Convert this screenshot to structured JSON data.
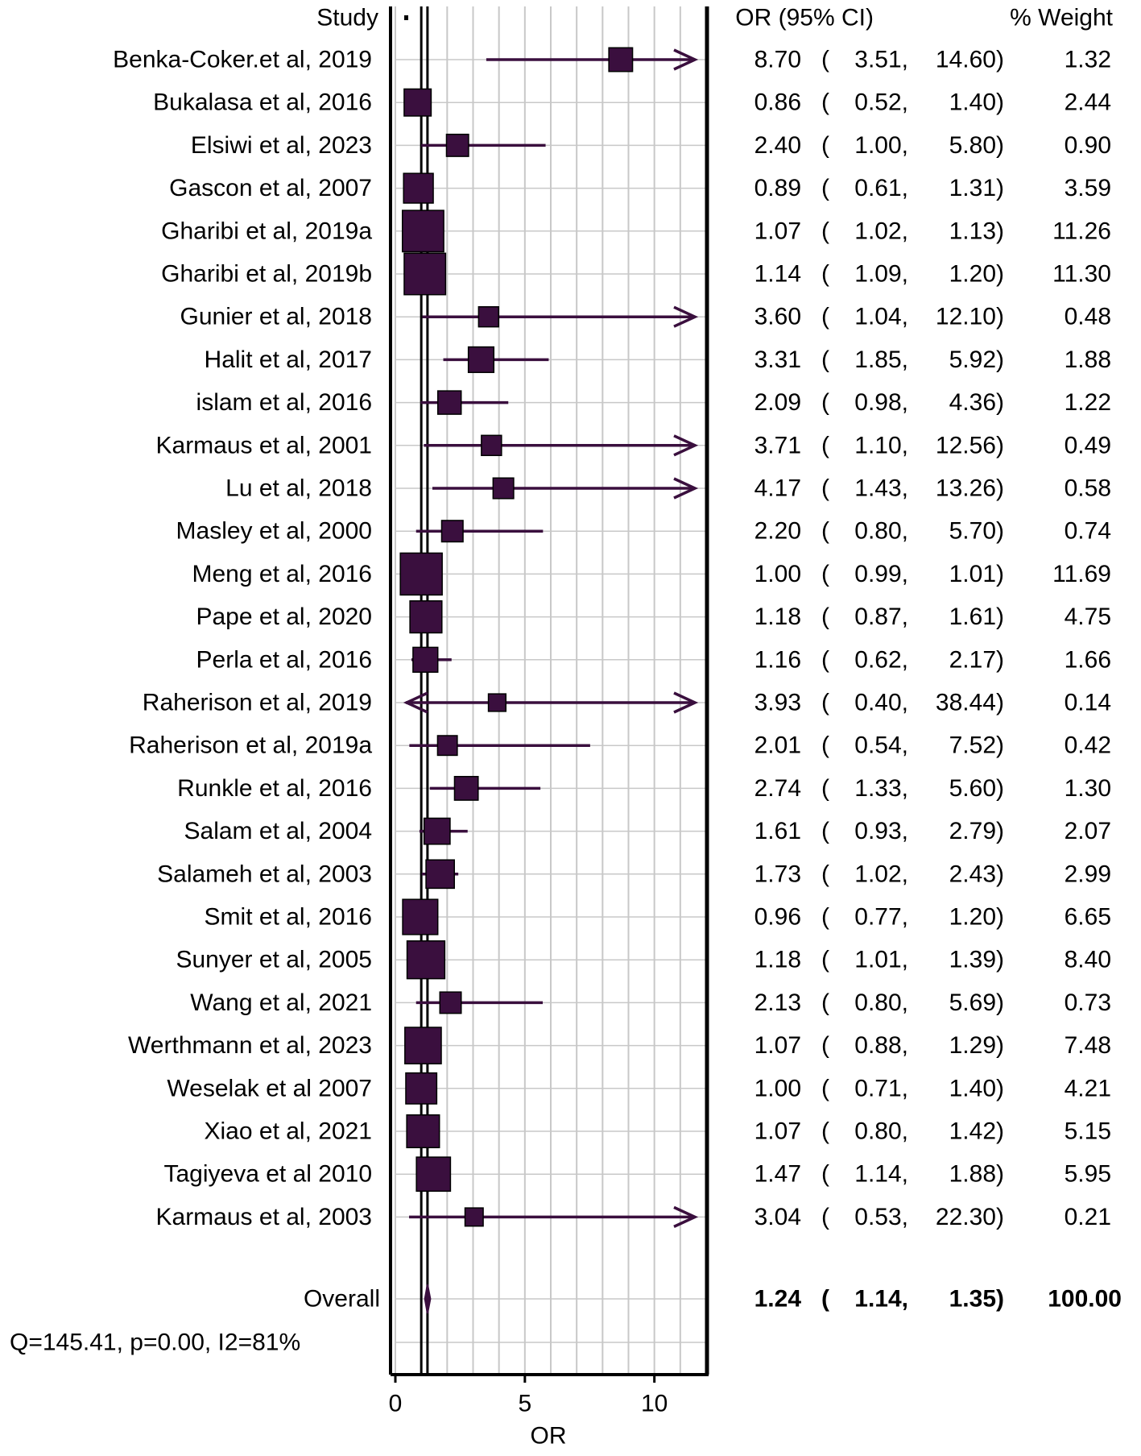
{
  "chart_data": {
    "type": "forest",
    "title": "",
    "xlabel": "OR",
    "xlim": [
      0,
      12
    ],
    "xticks": [
      0,
      5,
      10
    ],
    "gridlines": [
      0,
      1,
      2,
      3,
      4,
      5,
      6,
      7,
      8,
      9,
      10,
      11,
      12
    ],
    "grid": true,
    "null_line": 1,
    "pooled_estimate": 1.24,
    "headers": {
      "study": "Study",
      "ci": "OR (95% CI)",
      "weight": "% Weight"
    },
    "studies": [
      {
        "label": "Benka-Coker.et al, 2019",
        "or": 8.7,
        "lower": 3.51,
        "upper": 14.6,
        "or_text": "8.70",
        "lower_text": "3.51,",
        "upper_text": "14.60)",
        "weight": 1.32,
        "weight_text": "1.32"
      },
      {
        "label": "Bukalasa et al, 2016",
        "or": 0.86,
        "lower": 0.52,
        "upper": 1.4,
        "or_text": "0.86",
        "lower_text": "0.52,",
        "upper_text": "1.40)",
        "weight": 2.44,
        "weight_text": "2.44"
      },
      {
        "label": "Elsiwi et al, 2023",
        "or": 2.4,
        "lower": 1.0,
        "upper": 5.8,
        "or_text": "2.40",
        "lower_text": "1.00,",
        "upper_text": "5.80)",
        "weight": 0.9,
        "weight_text": "0.90"
      },
      {
        "label": "Gascon et al, 2007",
        "or": 0.89,
        "lower": 0.61,
        "upper": 1.31,
        "or_text": "0.89",
        "lower_text": "0.61,",
        "upper_text": "1.31)",
        "weight": 3.59,
        "weight_text": "3.59"
      },
      {
        "label": "Gharibi et al, 2019a",
        "or": 1.07,
        "lower": 1.02,
        "upper": 1.13,
        "or_text": "1.07",
        "lower_text": "1.02,",
        "upper_text": "1.13)",
        "weight": 11.26,
        "weight_text": "11.26"
      },
      {
        "label": "Gharibi et al, 2019b",
        "or": 1.14,
        "lower": 1.09,
        "upper": 1.2,
        "or_text": "1.14",
        "lower_text": "1.09,",
        "upper_text": "1.20)",
        "weight": 11.3,
        "weight_text": "11.30"
      },
      {
        "label": "Gunier et al, 2018",
        "or": 3.6,
        "lower": 1.04,
        "upper": 12.1,
        "or_text": "3.60",
        "lower_text": "1.04,",
        "upper_text": "12.10)",
        "weight": 0.48,
        "weight_text": "0.48"
      },
      {
        "label": "Halit et al, 2017",
        "or": 3.31,
        "lower": 1.85,
        "upper": 5.92,
        "or_text": "3.31",
        "lower_text": "1.85,",
        "upper_text": "5.92)",
        "weight": 1.88,
        "weight_text": "1.88"
      },
      {
        "label": "islam et al, 2016",
        "or": 2.09,
        "lower": 0.98,
        "upper": 4.36,
        "or_text": "2.09",
        "lower_text": "0.98,",
        "upper_text": "4.36)",
        "weight": 1.22,
        "weight_text": "1.22"
      },
      {
        "label": "Karmaus et al, 2001",
        "or": 3.71,
        "lower": 1.1,
        "upper": 12.56,
        "or_text": "3.71",
        "lower_text": "1.10,",
        "upper_text": "12.56)",
        "weight": 0.49,
        "weight_text": "0.49"
      },
      {
        "label": "Lu et al, 2018",
        "or": 4.17,
        "lower": 1.43,
        "upper": 13.26,
        "or_text": "4.17",
        "lower_text": "1.43,",
        "upper_text": "13.26)",
        "weight": 0.58,
        "weight_text": "0.58"
      },
      {
        "label": "Masley et al, 2000",
        "or": 2.2,
        "lower": 0.8,
        "upper": 5.7,
        "or_text": "2.20",
        "lower_text": "0.80,",
        "upper_text": "5.70)",
        "weight": 0.74,
        "weight_text": "0.74"
      },
      {
        "label": "Meng et al, 2016",
        "or": 1.0,
        "lower": 0.99,
        "upper": 1.01,
        "or_text": "1.00",
        "lower_text": "0.99,",
        "upper_text": "1.01)",
        "weight": 11.69,
        "weight_text": "11.69"
      },
      {
        "label": "Pape et al, 2020",
        "or": 1.18,
        "lower": 0.87,
        "upper": 1.61,
        "or_text": "1.18",
        "lower_text": "0.87,",
        "upper_text": "1.61)",
        "weight": 4.75,
        "weight_text": "4.75"
      },
      {
        "label": "Perla et al, 2016",
        "or": 1.16,
        "lower": 0.62,
        "upper": 2.17,
        "or_text": "1.16",
        "lower_text": "0.62,",
        "upper_text": "2.17)",
        "weight": 1.66,
        "weight_text": "1.66"
      },
      {
        "label": "Raherison et al, 2019",
        "or": 3.93,
        "lower": 0.4,
        "upper": 38.44,
        "or_text": "3.93",
        "lower_text": "0.40,",
        "upper_text": "38.44)",
        "weight": 0.14,
        "weight_text": "0.14"
      },
      {
        "label": "Raherison et al, 2019a",
        "or": 2.01,
        "lower": 0.54,
        "upper": 7.52,
        "or_text": "2.01",
        "lower_text": "0.54,",
        "upper_text": "7.52)",
        "weight": 0.42,
        "weight_text": "0.42"
      },
      {
        "label": "Runkle et al, 2016",
        "or": 2.74,
        "lower": 1.33,
        "upper": 5.6,
        "or_text": "2.74",
        "lower_text": "1.33,",
        "upper_text": "5.60)",
        "weight": 1.3,
        "weight_text": "1.30"
      },
      {
        "label": "Salam et al, 2004",
        "or": 1.61,
        "lower": 0.93,
        "upper": 2.79,
        "or_text": "1.61",
        "lower_text": "0.93,",
        "upper_text": "2.79)",
        "weight": 2.07,
        "weight_text": "2.07"
      },
      {
        "label": "Salameh et al, 2003",
        "or": 1.73,
        "lower": 1.02,
        "upper": 2.43,
        "or_text": "1.73",
        "lower_text": "1.02,",
        "upper_text": "2.43)",
        "weight": 2.99,
        "weight_text": "2.99"
      },
      {
        "label": "Smit et al, 2016",
        "or": 0.96,
        "lower": 0.77,
        "upper": 1.2,
        "or_text": "0.96",
        "lower_text": "0.77,",
        "upper_text": "1.20)",
        "weight": 6.65,
        "weight_text": "6.65"
      },
      {
        "label": "Sunyer et al, 2005",
        "or": 1.18,
        "lower": 1.01,
        "upper": 1.39,
        "or_text": "1.18",
        "lower_text": "1.01,",
        "upper_text": "1.39)",
        "weight": 8.4,
        "weight_text": "8.40"
      },
      {
        "label": "Wang et al, 2021",
        "or": 2.13,
        "lower": 0.8,
        "upper": 5.69,
        "or_text": "2.13",
        "lower_text": "0.80,",
        "upper_text": "5.69)",
        "weight": 0.73,
        "weight_text": "0.73"
      },
      {
        "label": "Werthmann et al, 2023",
        "or": 1.07,
        "lower": 0.88,
        "upper": 1.29,
        "or_text": "1.07",
        "lower_text": "0.88,",
        "upper_text": "1.29)",
        "weight": 7.48,
        "weight_text": "7.48"
      },
      {
        "label": "Weselak et al 2007",
        "or": 1.0,
        "lower": 0.71,
        "upper": 1.4,
        "or_text": "1.00",
        "lower_text": "0.71,",
        "upper_text": "1.40)",
        "weight": 4.21,
        "weight_text": "4.21"
      },
      {
        "label": "Xiao et al, 2021",
        "or": 1.07,
        "lower": 0.8,
        "upper": 1.42,
        "or_text": "1.07",
        "lower_text": "0.80,",
        "upper_text": "1.42)",
        "weight": 5.15,
        "weight_text": "5.15"
      },
      {
        "label": "Tagiyeva et al 2010",
        "or": 1.47,
        "lower": 1.14,
        "upper": 1.88,
        "or_text": "1.47",
        "lower_text": "1.14,",
        "upper_text": "1.88)",
        "weight": 5.95,
        "weight_text": "5.95"
      },
      {
        "label": "Karmaus et al, 2003",
        "or": 3.04,
        "lower": 0.53,
        "upper": 22.3,
        "or_text": "3.04",
        "lower_text": "0.53,",
        "upper_text": "22.30)",
        "weight": 0.21,
        "weight_text": "0.21"
      }
    ],
    "overall": {
      "label": "Overall",
      "or": 1.24,
      "lower": 1.14,
      "upper": 1.35,
      "or_text": "1.24",
      "lower_text": "1.14,",
      "upper_text": "1.35)",
      "weight": 100.0,
      "weight_text": "100.00"
    },
    "heterogeneity": "Q=145.41, p=0.00, I2=81%",
    "colors": {
      "marker": "#3a0f3e",
      "line": "#000000",
      "grid": "#c8c8c8",
      "text": "#000000"
    }
  }
}
